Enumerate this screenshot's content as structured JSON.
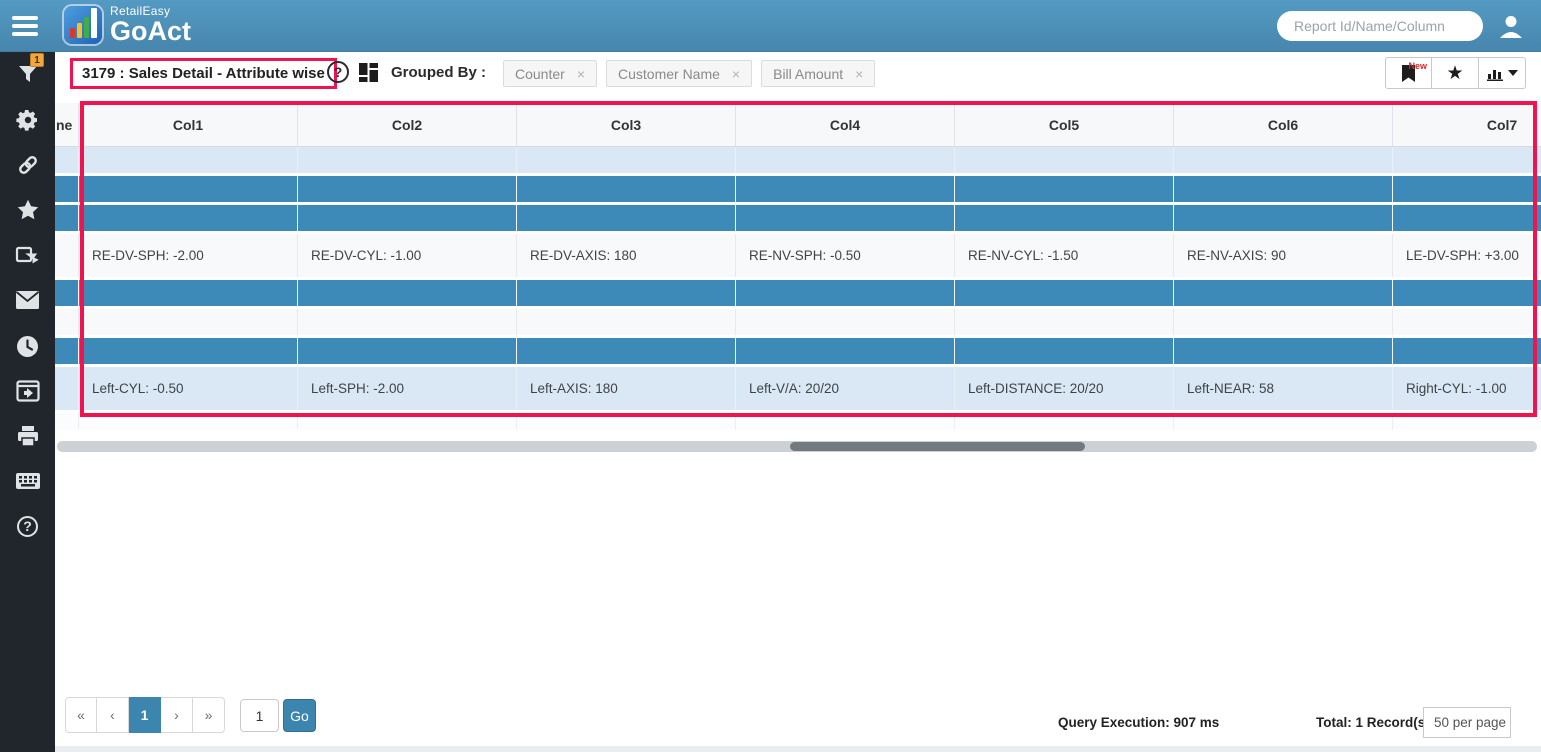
{
  "header": {
    "brand_top": "RetailEasy",
    "brand_bottom": "GoAct",
    "search": {
      "placeholder": "Report Id/Name/Column"
    }
  },
  "sidebar": {
    "filter_badge": "1",
    "help_glyph": "?",
    "items": [
      "filter",
      "settings",
      "link",
      "favorites",
      "share",
      "mail",
      "history",
      "export-window",
      "print",
      "keyboard",
      "help"
    ]
  },
  "toolbar": {
    "report_title": "3179 : Sales Detail - Attribute wise",
    "help_glyph": "?",
    "grouped_by_label": "Grouped By :",
    "chips": [
      {
        "label": "Counter",
        "close": "×"
      },
      {
        "label": "Customer Name",
        "close": "×"
      },
      {
        "label": "Bill Amount",
        "close": "×"
      }
    ],
    "new_badge": "New"
  },
  "table": {
    "partial_header": "ne",
    "columns": [
      "Col1",
      "Col2",
      "Col3",
      "Col4",
      "Col5",
      "Col6",
      "Col7"
    ],
    "rows": [
      {
        "type": "light",
        "cells": [
          "",
          "",
          "",
          "",
          "",
          "",
          ""
        ]
      },
      {
        "type": "dark",
        "cells": [
          "",
          "",
          "",
          "",
          "",
          "",
          ""
        ]
      },
      {
        "type": "dark",
        "cells": [
          "",
          "",
          "",
          "",
          "",
          "",
          ""
        ]
      },
      {
        "type": "white",
        "cells": [
          "RE-DV-SPH: -2.00",
          "RE-DV-CYL: -1.00",
          "RE-DV-AXIS: 180",
          "RE-NV-SPH: -0.50",
          "RE-NV-CYL: -1.50",
          "RE-NV-AXIS: 90",
          "LE-DV-SPH: +3.00"
        ]
      },
      {
        "type": "dark",
        "cells": [
          "",
          "",
          "",
          "",
          "",
          "",
          ""
        ]
      },
      {
        "type": "white",
        "cells": [
          "",
          "",
          "",
          "",
          "",
          "",
          ""
        ]
      },
      {
        "type": "dark",
        "cells": [
          "",
          "",
          "",
          "",
          "",
          "",
          ""
        ]
      },
      {
        "type": "light",
        "cells": [
          "Left-CYL: -0.50",
          "Left-SPH: -2.00",
          "Left-AXIS: 180",
          "Left-V/A: 20/20",
          "Left-DISTANCE: 20/20",
          "Left-NEAR: 58",
          "Right-CYL: -1.00"
        ]
      },
      {
        "type": "stub",
        "cells": [
          "",
          "",
          "",
          "",
          "",
          "",
          ""
        ]
      }
    ]
  },
  "pagination": {
    "first": "«",
    "prev": "‹",
    "page": "1",
    "next": "›",
    "last": "»",
    "goto_value": "1",
    "go_label": "Go"
  },
  "footer": {
    "query_execution": "Query Execution: 907 ms",
    "total": "Total: 1 Record(s)",
    "per_page": "50 per page"
  },
  "colors": {
    "topbar_blue": "#4a8cb4",
    "row_dark_blue": "#3d8ab8",
    "row_light_blue": "#d9e8f4",
    "highlight_red": "#ef1350",
    "badge_orange": "#f0a73e",
    "accent_blue": "#3c85ae"
  }
}
